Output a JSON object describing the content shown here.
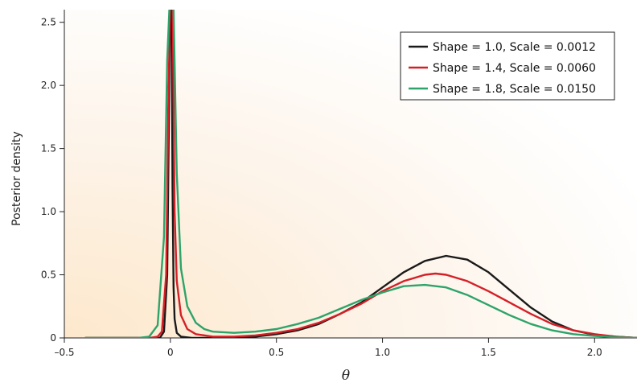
{
  "chart_data": {
    "type": "line",
    "title": "",
    "xlabel": "θ",
    "ylabel": "Posterior density",
    "xlim": [
      -0.5,
      2.2
    ],
    "ylim": [
      0,
      2.6
    ],
    "xticks": [
      -0.5,
      0,
      0.5,
      1.0,
      1.5,
      2.0
    ],
    "xtick_labels": [
      "–0.5",
      "0",
      "0.5",
      "1.0",
      "1.5",
      "2.0"
    ],
    "yticks": [
      0,
      0.5,
      1.0,
      1.5,
      2.0,
      2.5
    ],
    "ytick_labels": [
      "0",
      "0.5",
      "1.0",
      "1.5",
      "2.0",
      "2.5"
    ],
    "grid": false,
    "legend_position": "top-right",
    "background": "soft orange gradient from lower-left",
    "series": [
      {
        "name": "Shape = 1.0, Scale = 0.0012",
        "color": "#1a1a1a",
        "x": [
          -0.4,
          -0.1,
          -0.05,
          -0.03,
          -0.015,
          -0.005,
          0,
          0.005,
          0.01,
          0.015,
          0.02,
          0.03,
          0.05,
          0.1,
          0.2,
          0.3,
          0.4,
          0.5,
          0.6,
          0.7,
          0.8,
          0.9,
          1.0,
          1.1,
          1.2,
          1.3,
          1.4,
          1.5,
          1.6,
          1.7,
          1.8,
          1.9,
          2.0,
          2.1,
          2.2
        ],
        "y": [
          0,
          0,
          0.0,
          0.05,
          0.5,
          2.0,
          2.8,
          2.8,
          1.2,
          0.4,
          0.15,
          0.04,
          0.01,
          0.0,
          0.0,
          0.003,
          0.01,
          0.03,
          0.06,
          0.11,
          0.19,
          0.28,
          0.4,
          0.52,
          0.61,
          0.65,
          0.62,
          0.52,
          0.38,
          0.24,
          0.13,
          0.06,
          0.025,
          0.01,
          0.0
        ]
      },
      {
        "name": "Shape = 1.4, Scale = 0.0060",
        "color": "#d42027",
        "x": [
          -0.4,
          -0.1,
          -0.06,
          -0.04,
          -0.02,
          -0.01,
          0,
          0.01,
          0.02,
          0.03,
          0.05,
          0.08,
          0.12,
          0.2,
          0.3,
          0.4,
          0.5,
          0.6,
          0.7,
          0.8,
          0.9,
          1.0,
          1.1,
          1.2,
          1.25,
          1.3,
          1.4,
          1.5,
          1.6,
          1.7,
          1.8,
          1.9,
          2.0,
          2.1,
          2.2
        ],
        "y": [
          0,
          0,
          0.01,
          0.05,
          0.5,
          1.8,
          2.8,
          2.8,
          1.0,
          0.45,
          0.18,
          0.07,
          0.03,
          0.01,
          0.01,
          0.02,
          0.04,
          0.07,
          0.12,
          0.19,
          0.27,
          0.37,
          0.45,
          0.5,
          0.51,
          0.5,
          0.45,
          0.37,
          0.28,
          0.19,
          0.11,
          0.06,
          0.03,
          0.01,
          0.0
        ]
      },
      {
        "name": "Shape = 1.8, Scale = 0.0150",
        "color": "#2ea36a",
        "x": [
          -0.4,
          -0.15,
          -0.1,
          -0.06,
          -0.03,
          -0.015,
          0,
          0.015,
          0.03,
          0.05,
          0.08,
          0.12,
          0.16,
          0.2,
          0.3,
          0.4,
          0.5,
          0.6,
          0.7,
          0.8,
          0.9,
          1.0,
          1.1,
          1.2,
          1.3,
          1.4,
          1.5,
          1.6,
          1.7,
          1.8,
          1.9,
          2.0,
          2.1,
          2.2
        ],
        "y": [
          0,
          0,
          0.01,
          0.1,
          0.8,
          2.2,
          2.8,
          2.6,
          1.3,
          0.55,
          0.25,
          0.12,
          0.07,
          0.05,
          0.04,
          0.05,
          0.07,
          0.11,
          0.16,
          0.23,
          0.3,
          0.36,
          0.41,
          0.42,
          0.4,
          0.34,
          0.26,
          0.18,
          0.11,
          0.06,
          0.03,
          0.015,
          0.005,
          0.0
        ]
      }
    ]
  }
}
